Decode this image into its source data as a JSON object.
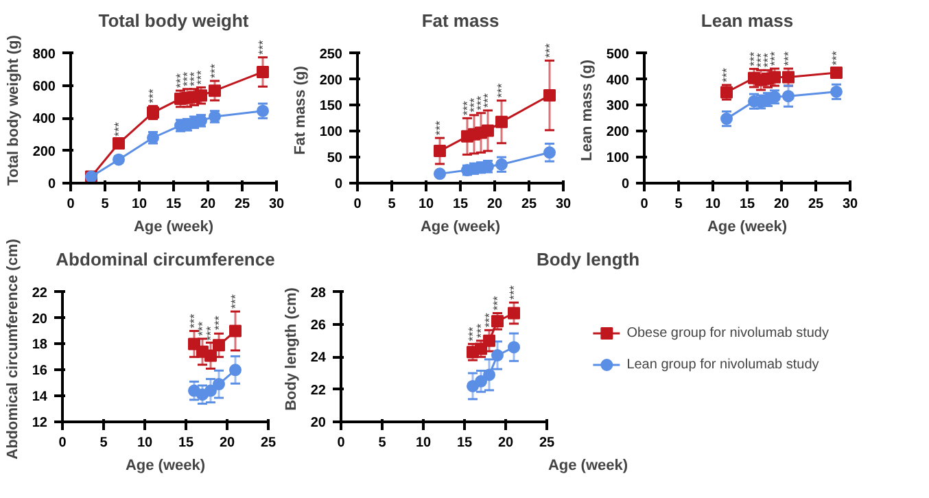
{
  "chart_data": [
    {
      "type": "line",
      "title": "Total body weight",
      "xlabel": "Age (week)",
      "ylabel": "Total body weight (g)",
      "x": [
        3,
        7,
        12,
        16,
        17,
        18,
        19,
        21,
        28
      ],
      "xlim": [
        0,
        30
      ],
      "xticks": [
        0,
        5,
        10,
        15,
        20,
        25,
        30
      ],
      "ylim": [
        0,
        800
      ],
      "yticks": [
        0,
        200,
        400,
        600,
        800
      ],
      "grid": false,
      "legend": false,
      "line_style": "solid",
      "series": [
        {
          "color": "#c0161d",
          "marker": "square",
          "values": [
            40,
            245,
            435,
            520,
            525,
            530,
            540,
            570,
            685
          ],
          "errors": [
            10,
            25,
            40,
            50,
            55,
            50,
            50,
            60,
            90
          ]
        },
        {
          "color": "#5b8fe6",
          "marker": "circle",
          "values": [
            40,
            145,
            280,
            355,
            360,
            375,
            385,
            410,
            445
          ],
          "errors": [
            10,
            20,
            35,
            35,
            35,
            35,
            35,
            35,
            45
          ]
        }
      ],
      "annotations": [
        {
          "text": "***",
          "x": 7,
          "y": 270
        },
        {
          "text": "***",
          "x": 12,
          "y": 475
        },
        {
          "text": "***",
          "x": 16,
          "y": 570
        },
        {
          "text": "***",
          "x": 17,
          "y": 580
        },
        {
          "text": "***",
          "x": 18,
          "y": 580
        },
        {
          "text": "***",
          "x": 19,
          "y": 590
        },
        {
          "text": "***",
          "x": 21,
          "y": 630
        },
        {
          "text": "***",
          "x": 28,
          "y": 775
        }
      ]
    },
    {
      "type": "line",
      "title": "Fat mass",
      "xlabel": "Age (week)",
      "ylabel": "Fat mass (g)",
      "x": [
        12,
        16,
        17,
        18,
        19,
        21,
        28
      ],
      "xlim": [
        0,
        30
      ],
      "xticks": [
        0,
        5,
        10,
        15,
        20,
        25,
        30
      ],
      "ylim": [
        0,
        250
      ],
      "yticks": [
        0,
        50,
        100,
        150,
        200,
        250
      ],
      "grid": false,
      "legend": false,
      "line_style": "solid",
      "series": [
        {
          "color": "#c0161d",
          "marker": "square",
          "values": [
            62,
            90,
            94,
            97,
            101,
            118,
            169
          ],
          "errors": [
            25,
            35,
            37,
            38,
            39,
            41,
            67
          ]
        },
        {
          "color": "#5b8fe6",
          "marker": "circle",
          "values": [
            18,
            25,
            28,
            30,
            32,
            36,
            59
          ],
          "errors": [
            5,
            9,
            10,
            10,
            11,
            14,
            17
          ]
        }
      ],
      "annotations": [
        {
          "text": "***",
          "x": 12,
          "y": 87
        },
        {
          "text": "***",
          "x": 16,
          "y": 125
        },
        {
          "text": "***",
          "x": 17,
          "y": 131
        },
        {
          "text": "***",
          "x": 18,
          "y": 135
        },
        {
          "text": "***",
          "x": 19,
          "y": 140
        },
        {
          "text": "***",
          "x": 21,
          "y": 159
        },
        {
          "text": "***",
          "x": 28,
          "y": 236
        }
      ]
    },
    {
      "type": "line",
      "title": "Lean mass",
      "xlabel": "Age (week)",
      "ylabel": "Lean mass (g)",
      "x": [
        12,
        16,
        17,
        18,
        19,
        21,
        28
      ],
      "xlim": [
        0,
        30
      ],
      "xticks": [
        0,
        5,
        10,
        15,
        20,
        25,
        30
      ],
      "ylim": [
        0,
        500
      ],
      "yticks": [
        0,
        100,
        200,
        300,
        400,
        500
      ],
      "grid": false,
      "legend": false,
      "line_style": "solid",
      "series": [
        {
          "color": "#c0161d",
          "marker": "square",
          "values": [
            350,
            405,
            397,
            402,
            408,
            408,
            425
          ],
          "errors": [
            28,
            35,
            38,
            33,
            33,
            33,
            18
          ]
        },
        {
          "color": "#5b8fe6",
          "marker": "circle",
          "values": [
            248,
            315,
            313,
            322,
            332,
            335,
            352
          ],
          "errors": [
            28,
            28,
            25,
            25,
            25,
            40,
            28
          ]
        }
      ],
      "annotations": [
        {
          "text": "***",
          "x": 12,
          "y": 378
        },
        {
          "text": "***",
          "x": 16,
          "y": 440
        },
        {
          "text": "***",
          "x": 17,
          "y": 435
        },
        {
          "text": "***",
          "x": 18,
          "y": 435
        },
        {
          "text": "***",
          "x": 19,
          "y": 441
        },
        {
          "text": "***",
          "x": 21,
          "y": 441
        },
        {
          "text": "***",
          "x": 28,
          "y": 443
        }
      ]
    },
    {
      "type": "line",
      "title": "Abdominal circumference",
      "xlabel": "Age (week)",
      "ylabel": "Abdomical circumference (cm)",
      "x": [
        16,
        17,
        18,
        19,
        21
      ],
      "xlim": [
        0,
        25
      ],
      "xticks": [
        0,
        5,
        10,
        15,
        20,
        25
      ],
      "ylim": [
        12,
        22
      ],
      "yticks": [
        12,
        14,
        16,
        18,
        20,
        22
      ],
      "grid": false,
      "legend": false,
      "line_style": "solid",
      "series": [
        {
          "color": "#c0161d",
          "marker": "square",
          "values": [
            18.0,
            17.4,
            17.1,
            17.9,
            19.0
          ],
          "errors": [
            1.0,
            1.0,
            1.0,
            0.9,
            1.5
          ]
        },
        {
          "color": "#5b8fe6",
          "marker": "circle",
          "values": [
            14.4,
            14.1,
            14.4,
            14.9,
            16.0
          ],
          "errors": [
            0.7,
            0.7,
            0.9,
            1.05,
            1.05
          ]
        }
      ],
      "annotations": [
        {
          "text": "***",
          "x": 16,
          "y": 19.0
        },
        {
          "text": "***",
          "x": 17,
          "y": 18.4
        },
        {
          "text": "***",
          "x": 18,
          "y": 18.05
        },
        {
          "text": "***",
          "x": 19,
          "y": 18.85
        },
        {
          "text": "***",
          "x": 21,
          "y": 20.5
        }
      ]
    },
    {
      "type": "line",
      "title": "Body length",
      "xlabel": "Age (week)",
      "ylabel": "Body length (cm)",
      "x": [
        16,
        17,
        18,
        19,
        21
      ],
      "xlim": [
        0,
        25
      ],
      "xticks": [
        0,
        5,
        10,
        15,
        20,
        25
      ],
      "ylim": [
        20,
        28
      ],
      "yticks": [
        20,
        22,
        24,
        26,
        28
      ],
      "grid": false,
      "legend": "right",
      "line_style": "solid",
      "series": [
        {
          "name": "Obese group for nivolumab study",
          "color": "#c0161d",
          "marker": "square",
          "values": [
            24.3,
            24.5,
            25.0,
            26.2,
            26.7
          ],
          "errors": [
            0.5,
            0.5,
            0.65,
            0.5,
            0.65
          ]
        },
        {
          "name": "Lean group for nivolumab study",
          "color": "#5b8fe6",
          "marker": "circle",
          "values": [
            22.2,
            22.5,
            22.9,
            24.1,
            24.6
          ],
          "errors": [
            0.8,
            0.65,
            0.95,
            0.85,
            0.85
          ]
        }
      ],
      "annotations": [
        {
          "text": "***",
          "x": 16,
          "y": 24.8
        },
        {
          "text": "***",
          "x": 17,
          "y": 25.0
        },
        {
          "text": "***",
          "x": 18,
          "y": 25.65
        },
        {
          "text": "***",
          "x": 19,
          "y": 26.7
        },
        {
          "text": "***",
          "x": 21,
          "y": 27.35
        }
      ]
    }
  ]
}
